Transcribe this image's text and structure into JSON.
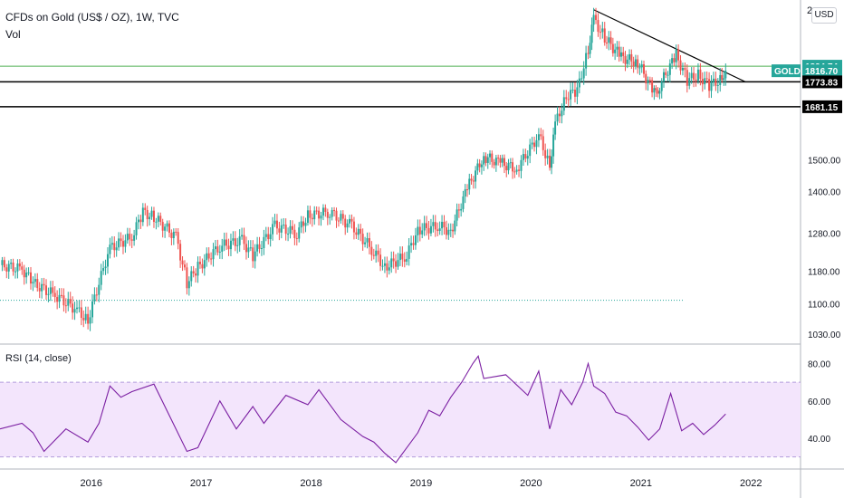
{
  "header": {
    "title": "CFDs on Gold (US$ / OZ), 1W, TVC",
    "vol_label": "Vol",
    "currency_button": "USD",
    "top_tick": "2"
  },
  "rsi": {
    "label": "RSI (14, close)",
    "upper_band": 70,
    "lower_band": 30,
    "ticks": [
      "80.00",
      "60.00",
      "40.00"
    ]
  },
  "price_axis_ticks": [
    "1500.00",
    "1400.00",
    "1280.00",
    "1180.00",
    "1100.00",
    "1030.00"
  ],
  "time_axis_ticks": [
    "2016",
    "2017",
    "2018",
    "2019",
    "2020",
    "2021",
    "2022"
  ],
  "price_tags": {
    "green": {
      "value": "1834.74",
      "color": "#26a69a"
    },
    "gold": {
      "symbol": "GOLD",
      "value": "1816.70",
      "color": "#26a69a"
    },
    "level1": {
      "value": "1773.83",
      "color": "#000000"
    },
    "level2": {
      "value": "1681.15",
      "color": "#000000"
    }
  },
  "colors": {
    "up": "#26a69a",
    "down": "#ef5350",
    "rsi_line": "#7b1fa2",
    "rsi_band": "#f3e5fc",
    "trendline": "#000000",
    "green_line": "#4caf50"
  },
  "chart_data": {
    "type": "candlestick",
    "symbol": "GOLD",
    "interval": "1W",
    "scale": "log",
    "price_range": [
      1030,
      2075
    ],
    "x_range": [
      2015.2,
      2022.3
    ],
    "series": [
      {
        "name": "close",
        "x": [
          2015.2,
          2015.4,
          2015.5,
          2015.7,
          2015.9,
          2016.0,
          2016.2,
          2016.4,
          2016.5,
          2016.6,
          2016.8,
          2016.9,
          2017.0,
          2017.2,
          2017.4,
          2017.5,
          2017.7,
          2017.9,
          2018.0,
          2018.2,
          2018.4,
          2018.6,
          2018.7,
          2018.9,
          2019.0,
          2019.2,
          2019.3,
          2019.45,
          2019.6,
          2019.75,
          2019.9,
          2020.1,
          2020.2,
          2020.25,
          2020.35,
          2020.45,
          2020.55,
          2020.6,
          2020.7,
          2020.85,
          2021.0,
          2021.15,
          2021.2,
          2021.35,
          2021.45,
          2021.55,
          2021.65,
          2021.75,
          2021.8
        ],
        "values": [
          1195,
          1185,
          1150,
          1120,
          1085,
          1060,
          1240,
          1270,
          1340,
          1325,
          1270,
          1150,
          1190,
          1245,
          1260,
          1220,
          1300,
          1280,
          1330,
          1340,
          1300,
          1230,
          1190,
          1220,
          1290,
          1300,
          1285,
          1410,
          1510,
          1490,
          1470,
          1580,
          1480,
          1620,
          1720,
          1740,
          1900,
          2030,
          1950,
          1870,
          1850,
          1730,
          1760,
          1880,
          1780,
          1800,
          1760,
          1780,
          1816.7
        ]
      },
      {
        "name": "RSI (14, close)",
        "x": [
          2015.2,
          2015.4,
          2015.5,
          2015.6,
          2015.8,
          2016.0,
          2016.1,
          2016.2,
          2016.3,
          2016.4,
          2016.6,
          2016.9,
          2017.0,
          2017.2,
          2017.35,
          2017.5,
          2017.6,
          2017.8,
          2018.0,
          2018.1,
          2018.3,
          2018.5,
          2018.6,
          2018.7,
          2018.8,
          2019.0,
          2019.1,
          2019.2,
          2019.3,
          2019.4,
          2019.5,
          2019.55,
          2019.6,
          2019.8,
          2020.0,
          2020.1,
          2020.2,
          2020.3,
          2020.4,
          2020.5,
          2020.55,
          2020.6,
          2020.7,
          2020.8,
          2020.9,
          2021.0,
          2021.1,
          2021.2,
          2021.3,
          2021.4,
          2021.5,
          2021.6,
          2021.7,
          2021.8
        ],
        "values": [
          45,
          48,
          43,
          33,
          45,
          38,
          48,
          68,
          62,
          65,
          69,
          33,
          35,
          60,
          45,
          57,
          48,
          63,
          58,
          66,
          50,
          41,
          38,
          32,
          27,
          43,
          55,
          52,
          62,
          70,
          80,
          84,
          72,
          74,
          63,
          76,
          45,
          66,
          58,
          70,
          80,
          68,
          64,
          54,
          52,
          46,
          39,
          45,
          64,
          44,
          48,
          42,
          47,
          53
        ]
      }
    ]
  }
}
